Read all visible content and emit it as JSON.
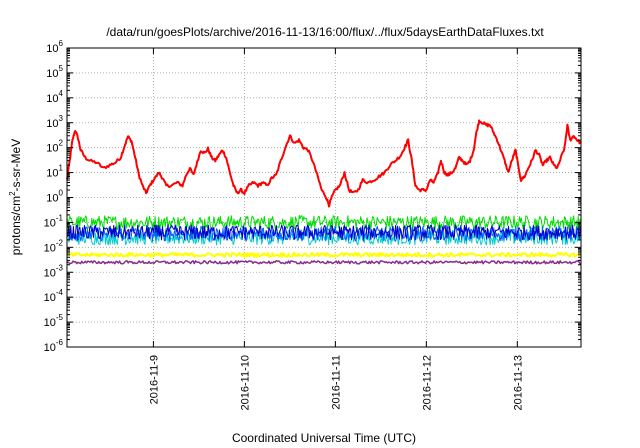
{
  "chart_data": {
    "type": "line",
    "title": "/data/run/goesPlots/archive/2016-11-13/16:00/flux/../flux/5daysEarthDataFluxes.txt",
    "xlabel": "Coordinated Universal Time (UTC)",
    "ylabel": {
      "parts": [
        "protons/cm",
        "2",
        "-s-sr-MeV"
      ]
    },
    "xlim": [
      -0.95,
      4.7
    ],
    "x_unit_note": "days relative to 2016-11-09 00:00 UTC",
    "ylim": [
      1e-06,
      1000000.0
    ],
    "yscale": "log",
    "grid": true,
    "legend": "none",
    "x_ticks": [
      {
        "x": 0,
        "label": "2016-11-9"
      },
      {
        "x": 1,
        "label": "2016-11-10"
      },
      {
        "x": 2,
        "label": "2016-11-11"
      },
      {
        "x": 3,
        "label": "2016-11-12"
      },
      {
        "x": 4,
        "label": "2016-11-13"
      }
    ],
    "y_ticks": [
      {
        "value": 1e-06,
        "base": "10",
        "exp": "-6"
      },
      {
        "value": 1e-05,
        "base": "10",
        "exp": "-5"
      },
      {
        "value": 0.0001,
        "base": "10",
        "exp": "-4"
      },
      {
        "value": 0.001,
        "base": "10",
        "exp": "-3"
      },
      {
        "value": 0.01,
        "base": "10",
        "exp": "-2"
      },
      {
        "value": 0.1,
        "base": "10",
        "exp": "-1"
      },
      {
        "value": 1,
        "base": "10",
        "exp": "0"
      },
      {
        "value": 10,
        "base": "10",
        "exp": "1"
      },
      {
        "value": 100,
        "base": "10",
        "exp": "2"
      },
      {
        "value": 1000,
        "base": "10",
        "exp": "3"
      },
      {
        "value": 10000,
        "base": "10",
        "exp": "4"
      },
      {
        "value": 100000,
        "base": "10",
        "exp": "5"
      },
      {
        "value": 1000000,
        "base": "10",
        "exp": "6"
      }
    ],
    "series": [
      {
        "color": "#ff0000",
        "width": 2,
        "points": [
          [
            -0.95,
            5
          ],
          [
            -0.92,
            30
          ],
          [
            -0.89,
            200
          ],
          [
            -0.86,
            500
          ],
          [
            -0.83,
            250
          ],
          [
            -0.8,
            80
          ],
          [
            -0.75,
            40
          ],
          [
            -0.7,
            30
          ],
          [
            -0.62,
            25
          ],
          [
            -0.55,
            15
          ],
          [
            -0.48,
            20
          ],
          [
            -0.42,
            25
          ],
          [
            -0.36,
            40
          ],
          [
            -0.32,
            110
          ],
          [
            -0.28,
            280
          ],
          [
            -0.24,
            180
          ],
          [
            -0.2,
            40
          ],
          [
            -0.16,
            8
          ],
          [
            -0.12,
            3
          ],
          [
            -0.08,
            1.5
          ],
          [
            -0.04,
            3
          ],
          [
            0.0,
            5
          ],
          [
            0.06,
            10
          ],
          [
            0.1,
            6
          ],
          [
            0.14,
            3
          ],
          [
            0.2,
            3
          ],
          [
            0.26,
            4
          ],
          [
            0.32,
            3
          ],
          [
            0.36,
            8
          ],
          [
            0.4,
            15
          ],
          [
            0.44,
            8
          ],
          [
            0.48,
            25
          ],
          [
            0.52,
            80
          ],
          [
            0.56,
            60
          ],
          [
            0.6,
            90
          ],
          [
            0.64,
            40
          ],
          [
            0.68,
            30
          ],
          [
            0.72,
            50
          ],
          [
            0.76,
            80
          ],
          [
            0.8,
            40
          ],
          [
            0.84,
            10
          ],
          [
            0.88,
            3
          ],
          [
            0.92,
            1.5
          ],
          [
            0.96,
            2
          ],
          [
            1.0,
            1.5
          ],
          [
            1.05,
            3
          ],
          [
            1.1,
            4
          ],
          [
            1.15,
            3
          ],
          [
            1.2,
            4
          ],
          [
            1.25,
            3
          ],
          [
            1.3,
            6
          ],
          [
            1.35,
            8
          ],
          [
            1.4,
            30
          ],
          [
            1.45,
            100
          ],
          [
            1.5,
            300
          ],
          [
            1.55,
            150
          ],
          [
            1.6,
            200
          ],
          [
            1.65,
            100
          ],
          [
            1.7,
            80
          ],
          [
            1.75,
            30
          ],
          [
            1.8,
            8
          ],
          [
            1.85,
            2
          ],
          [
            1.9,
            1
          ],
          [
            1.93,
            0.5
          ],
          [
            1.96,
            1
          ],
          [
            2.0,
            2
          ],
          [
            2.05,
            3
          ],
          [
            2.1,
            10
          ],
          [
            2.15,
            2
          ],
          [
            2.2,
            1.5
          ],
          [
            2.25,
            2
          ],
          [
            2.3,
            5
          ],
          [
            2.36,
            4
          ],
          [
            2.42,
            5
          ],
          [
            2.48,
            7
          ],
          [
            2.54,
            10
          ],
          [
            2.6,
            20
          ],
          [
            2.66,
            30
          ],
          [
            2.72,
            50
          ],
          [
            2.76,
            100
          ],
          [
            2.8,
            200
          ],
          [
            2.84,
            30
          ],
          [
            2.88,
            3
          ],
          [
            2.92,
            2
          ],
          [
            2.96,
            2
          ],
          [
            3.0,
            2
          ],
          [
            3.04,
            5
          ],
          [
            3.08,
            4
          ],
          [
            3.12,
            8
          ],
          [
            3.16,
            30
          ],
          [
            3.2,
            10
          ],
          [
            3.24,
            8
          ],
          [
            3.28,
            10
          ],
          [
            3.32,
            15
          ],
          [
            3.36,
            40
          ],
          [
            3.4,
            30
          ],
          [
            3.44,
            20
          ],
          [
            3.48,
            30
          ],
          [
            3.52,
            80
          ],
          [
            3.55,
            400
          ],
          [
            3.58,
            1200
          ],
          [
            3.62,
            1000
          ],
          [
            3.66,
            800
          ],
          [
            3.7,
            800
          ],
          [
            3.74,
            400
          ],
          [
            3.78,
            200
          ],
          [
            3.82,
            80
          ],
          [
            3.86,
            30
          ],
          [
            3.9,
            10
          ],
          [
            3.94,
            30
          ],
          [
            3.98,
            80
          ],
          [
            4.0,
            30
          ],
          [
            4.04,
            5
          ],
          [
            4.08,
            7
          ],
          [
            4.12,
            15
          ],
          [
            4.16,
            30
          ],
          [
            4.2,
            80
          ],
          [
            4.24,
            50
          ],
          [
            4.28,
            20
          ],
          [
            4.32,
            30
          ],
          [
            4.36,
            40
          ],
          [
            4.4,
            20
          ],
          [
            4.44,
            15
          ],
          [
            4.48,
            40
          ],
          [
            4.52,
            100
          ],
          [
            4.55,
            800
          ],
          [
            4.58,
            200
          ],
          [
            4.62,
            300
          ],
          [
            4.66,
            200
          ],
          [
            4.7,
            150
          ]
        ],
        "jitter": 0.06
      },
      {
        "color": "#00dd00",
        "width": 1,
        "band": [
          0.05,
          0.2
        ],
        "base": 0.1,
        "jitter": 0.28,
        "n": 560
      },
      {
        "color": "#00cccc",
        "width": 1,
        "band": [
          0.012,
          0.06
        ],
        "base": 0.025,
        "jitter": 0.3,
        "n": 560
      },
      {
        "color": "#0060ff",
        "width": 1,
        "band": [
          0.015,
          0.08
        ],
        "base": 0.035,
        "jitter": 0.3,
        "n": 560
      },
      {
        "color": "#0000cc",
        "width": 1,
        "band": [
          0.02,
          0.09
        ],
        "base": 0.04,
        "jitter": 0.3,
        "n": 560
      },
      {
        "color": "#ffff00",
        "width": 2,
        "band": [
          0.004,
          0.0065
        ],
        "base": 0.005,
        "jitter": 0.08,
        "n": 420
      },
      {
        "color": "#8b2c8b",
        "width": 1.5,
        "band": [
          0.0019,
          0.0031
        ],
        "base": 0.0025,
        "jitter": 0.06,
        "n": 420
      }
    ]
  }
}
